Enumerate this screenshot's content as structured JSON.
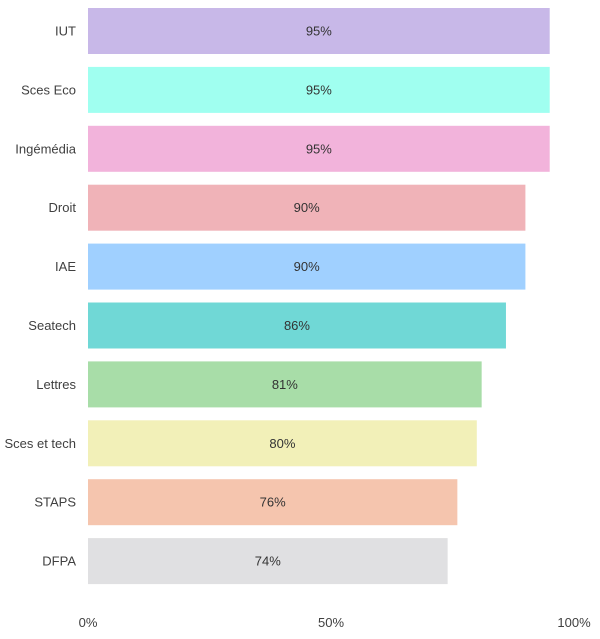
{
  "chart_data": {
    "type": "bar",
    "orientation": "horizontal",
    "title": "",
    "xlabel": "",
    "ylabel": "",
    "categories": [
      "IUT",
      "Sces Eco",
      "Ingémédia",
      "Droit",
      "IAE",
      "Seatech",
      "Lettres",
      "Sces et tech",
      "STAPS",
      "DFPA"
    ],
    "values": [
      95,
      95,
      95,
      90,
      90,
      86,
      81,
      80,
      76,
      74
    ],
    "value_labels": [
      "95%",
      "95%",
      "95%",
      "90%",
      "90%",
      "86%",
      "81%",
      "80%",
      "76%",
      "74%"
    ],
    "colors": [
      "#C8B8E8",
      "#A0FFF0",
      "#F2B3DB",
      "#F0B3B8",
      "#A0D0FF",
      "#70D8D6",
      "#A8DDA8",
      "#F2F0B8",
      "#F5C5AE",
      "#E0E0E2"
    ],
    "xlim": [
      0,
      100
    ],
    "x_ticks": [
      0,
      50,
      100
    ],
    "x_tick_labels": [
      "0%",
      "50%",
      "100%"
    ],
    "grid": false,
    "legend": "none"
  }
}
